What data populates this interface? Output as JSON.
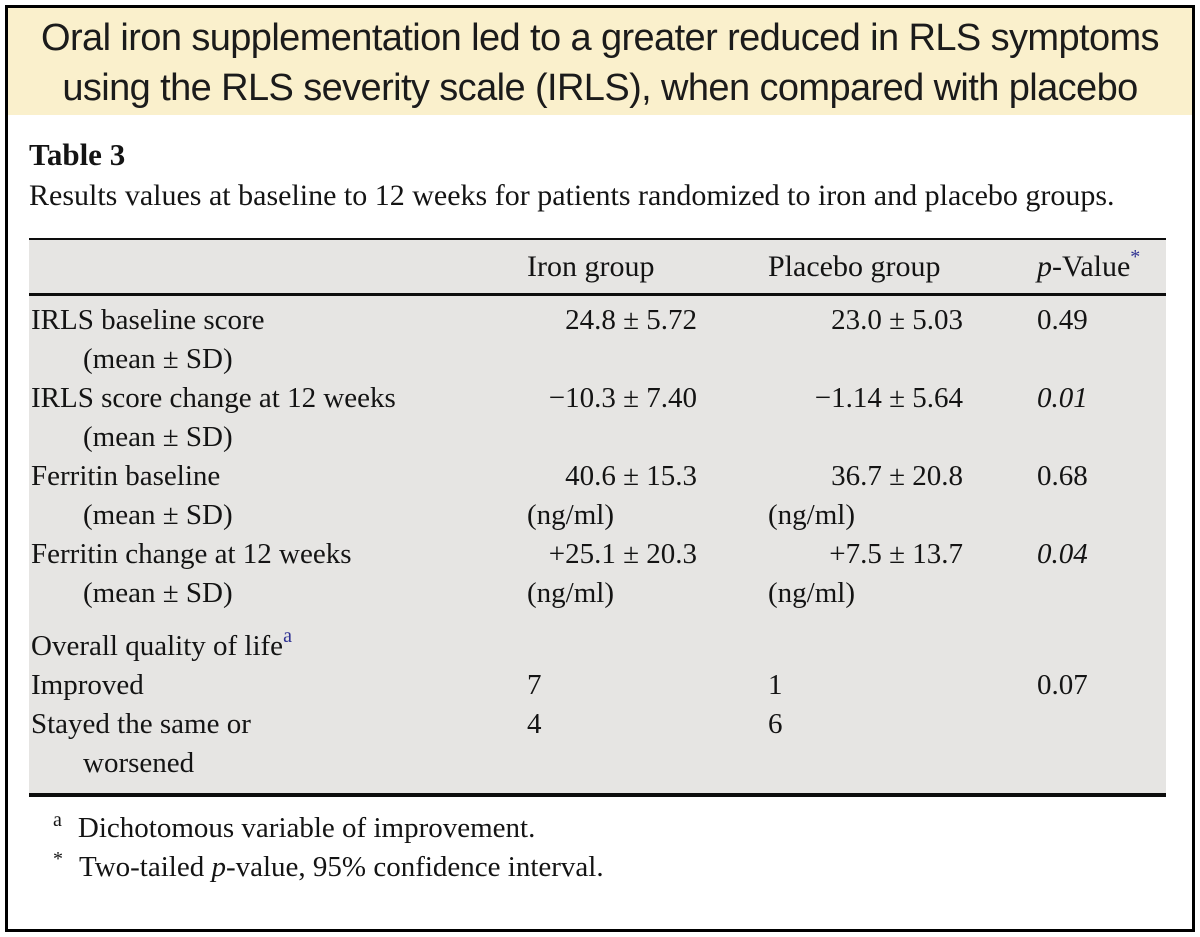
{
  "banner": {
    "line1": "Oral iron supplementation led to a greater reduced in RLS symptoms",
    "line2": "using the RLS severity scale (IRLS), when compared with placebo",
    "bg_color": "#FAF0CC"
  },
  "table_label": "Table 3",
  "caption": "Results values at baseline to 12 weeks for patients randomized to iron and placebo groups.",
  "colors": {
    "table_background": "#E6E5E3",
    "superscript_blue": "#2E3192",
    "rule_black": "#0d0d0d"
  },
  "chart_data": {
    "type": "table",
    "title": "Table 3. Results values at baseline to 12 weeks for patients randomized to iron and placebo groups.",
    "columns": [
      "",
      "Iron group",
      "Placebo group",
      "p-Value*"
    ],
    "rows": [
      [
        "IRLS baseline score (mean ± SD)",
        "24.8 ± 5.72",
        "23.0 ± 5.03",
        "0.49"
      ],
      [
        "IRLS score change at 12 weeks (mean ± SD)",
        "−10.3 ± 7.40",
        "−1.14 ± 5.64",
        "0.01"
      ],
      [
        "Ferritin baseline (mean ± SD)",
        "40.6 ± 15.3 (ng/ml)",
        "36.7 ± 20.8 (ng/ml)",
        "0.68"
      ],
      [
        "Ferritin change at 12 weeks (mean ± SD)",
        "+25.1 ± 20.3 (ng/ml)",
        "+7.5 ± 13.7 (ng/ml)",
        "0.04"
      ],
      [
        "Overall quality of life(a)",
        "",
        "",
        ""
      ],
      [
        "Improved",
        "7",
        "1",
        "0.07"
      ],
      [
        "Stayed the same or worsened",
        "4",
        "6",
        ""
      ]
    ]
  },
  "table": {
    "header": {
      "iron": "Iron group",
      "placebo": "Placebo group",
      "p_italic": "p",
      "p_rest": "-Value",
      "p_sup": "*"
    },
    "rows": [
      {
        "label": "IRLS baseline score",
        "label2": "(mean ± SD)",
        "iron": "24.8 ± 5.72",
        "placebo": "23.0 ± 5.03",
        "p": "0.49"
      },
      {
        "label": "IRLS score change at 12 weeks",
        "label2": "(mean ± SD)",
        "iron": "−10.3 ± 7.40",
        "placebo": "−1.14 ± 5.64",
        "p": "0.01"
      },
      {
        "label": "Ferritin baseline",
        "label2": "(mean ± SD)",
        "iron": "40.6 ± 15.3",
        "iron_unit": "(ng/ml)",
        "placebo": "36.7 ± 20.8",
        "placebo_unit": "(ng/ml)",
        "p": "0.68"
      },
      {
        "label": "Ferritin change at 12 weeks",
        "label2": "(mean ± SD)",
        "iron": "+25.1 ± 20.3",
        "iron_unit": "(ng/ml)",
        "placebo": "+7.5 ± 13.7",
        "placebo_unit": "(ng/ml)",
        "p": "0.04"
      },
      {
        "label": "Overall quality of life",
        "label_sup": "a"
      },
      {
        "label": "Improved",
        "iron": "7",
        "placebo": "1",
        "p": "0.07"
      },
      {
        "label": "Stayed the same or",
        "label2": "worsened",
        "iron": "4",
        "placebo": "6"
      }
    ]
  },
  "footnotes": [
    {
      "marker": "a",
      "pre": "Dichotomous variable of improvement.",
      "italic": "",
      "post": ""
    },
    {
      "marker": "*",
      "pre": "Two-tailed ",
      "italic": "p",
      "post": "-value, 95% confidence interval."
    }
  ]
}
